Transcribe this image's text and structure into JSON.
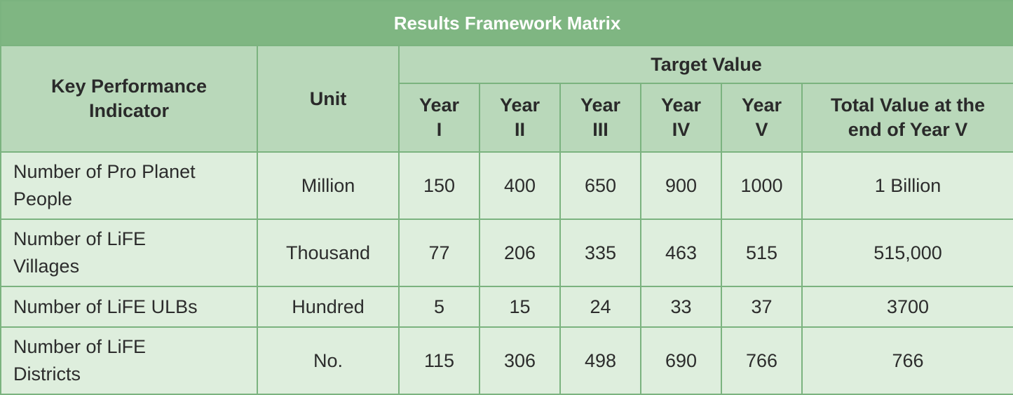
{
  "table": {
    "title": "Results Framework Matrix",
    "headers": {
      "kpi": "Key Performance Indicator",
      "unit": "Unit",
      "target_value": "Target Value",
      "year_1": "Year I",
      "year_2": "Year II",
      "year_3": "Year III",
      "year_4": "Year IV",
      "year_5": "Year V",
      "total": "Total Value at the end of Year V"
    },
    "rows": [
      {
        "kpi": "Number of Pro Planet People",
        "unit": "Million",
        "y1": "150",
        "y2": "400",
        "y3": "650",
        "y4": "900",
        "y5": "1000",
        "total": "1 Billion"
      },
      {
        "kpi": "Number of LiFE Villages",
        "unit": "Thousand",
        "y1": "77",
        "y2": "206",
        "y3": "335",
        "y4": "463",
        "y5": "515",
        "total": "515,000"
      },
      {
        "kpi": "Number of LiFE ULBs",
        "unit": "Hundred",
        "y1": "5",
        "y2": "15",
        "y3": "24",
        "y4": "33",
        "y5": "37",
        "total": "3700"
      },
      {
        "kpi": "Number of LiFE Districts",
        "unit": "No.",
        "y1": "115",
        "y2": "306",
        "y3": "498",
        "y4": "690",
        "y5": "766",
        "total": "766"
      }
    ]
  },
  "colors": {
    "title_bg": "#7fb682",
    "header_bg": "#b9d8ba",
    "cell_bg": "#deeedd",
    "border": "#7bb37f"
  }
}
